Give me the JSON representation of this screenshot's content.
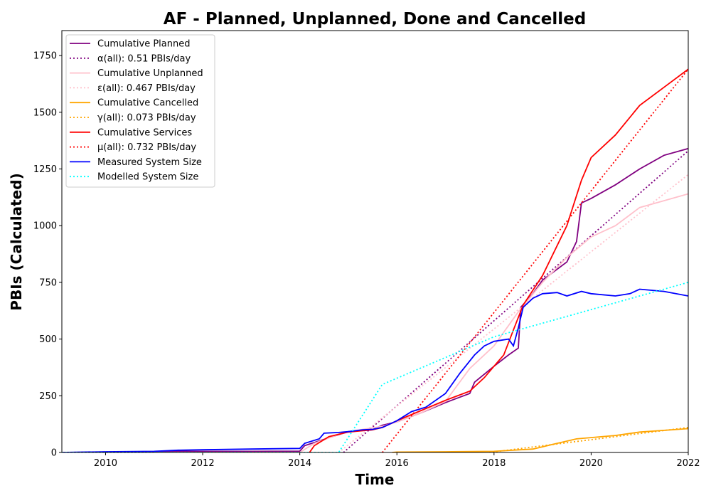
{
  "chart_data": {
    "type": "line",
    "title": "AF - Planned, Unplanned, Done  and Cancelled",
    "xlabel": "Time",
    "ylabel": "PBIs (Calculated)",
    "xlim": [
      2009.1,
      2022.0
    ],
    "ylim": [
      0,
      1860
    ],
    "x_ticks": [
      2010,
      2012,
      2014,
      2016,
      2018,
      2020,
      2022
    ],
    "x_tick_labels": [
      "2010",
      "2012",
      "2014",
      "2016",
      "2018",
      "2020",
      "2022"
    ],
    "y_ticks": [
      0,
      250,
      500,
      750,
      1000,
      1250,
      1500,
      1750
    ],
    "y_tick_labels": [
      "0",
      "250",
      "500",
      "750",
      "1000",
      "1250",
      "1500",
      "1750"
    ],
    "grid": false,
    "legend_position": "top-left",
    "series": [
      {
        "name": "Cumulative Planned",
        "color": "#800080",
        "style": "solid",
        "points": [
          [
            2009.1,
            0
          ],
          [
            2010,
            2
          ],
          [
            2011,
            3
          ],
          [
            2011.5,
            5
          ],
          [
            2013,
            5
          ],
          [
            2014,
            6
          ],
          [
            2014.1,
            30
          ],
          [
            2014.6,
            65
          ],
          [
            2015,
            92
          ],
          [
            2015.5,
            100
          ],
          [
            2015.7,
            120
          ],
          [
            2016,
            135
          ],
          [
            2016.5,
            175
          ],
          [
            2017,
            220
          ],
          [
            2017.5,
            260
          ],
          [
            2017.6,
            310
          ],
          [
            2018,
            380
          ],
          [
            2018.3,
            430
          ],
          [
            2018.5,
            460
          ],
          [
            2018.55,
            640
          ],
          [
            2018.8,
            700
          ],
          [
            2019,
            760
          ],
          [
            2019.5,
            840
          ],
          [
            2019.7,
            930
          ],
          [
            2019.8,
            1100
          ],
          [
            2020,
            1120
          ],
          [
            2020.5,
            1180
          ],
          [
            2021,
            1250
          ],
          [
            2021.5,
            1310
          ],
          [
            2022,
            1340
          ]
        ]
      },
      {
        "name": "α(all): 0.51 PBIs/day",
        "color": "#800080",
        "style": "dotted",
        "points": [
          [
            2014.9,
            0
          ],
          [
            2022,
            1330
          ]
        ]
      },
      {
        "name": "Cumulative Unplanned",
        "color": "#ffc0cb",
        "style": "solid",
        "points": [
          [
            2009.1,
            0
          ],
          [
            2014,
            0
          ],
          [
            2014.3,
            40
          ],
          [
            2014.8,
            80
          ],
          [
            2015,
            92
          ],
          [
            2015.7,
            115
          ],
          [
            2016,
            135
          ],
          [
            2016.5,
            175
          ],
          [
            2017,
            225
          ],
          [
            2017.5,
            370
          ],
          [
            2018,
            470
          ],
          [
            2018.5,
            620
          ],
          [
            2019,
            750
          ],
          [
            2019.5,
            860
          ],
          [
            2020,
            950
          ],
          [
            2020.5,
            1000
          ],
          [
            2021,
            1080
          ],
          [
            2021.5,
            1110
          ],
          [
            2022,
            1140
          ]
        ]
      },
      {
        "name": "ε(all): 0.467 PBIs/day",
        "color": "#ffc0cb",
        "style": "dotted",
        "points": [
          [
            2014.8,
            0
          ],
          [
            2022,
            1225
          ]
        ]
      },
      {
        "name": "Cumulative Cancelled",
        "color": "#ffa500",
        "style": "solid",
        "points": [
          [
            2015.9,
            0
          ],
          [
            2016,
            2
          ],
          [
            2017,
            3
          ],
          [
            2018,
            5
          ],
          [
            2018.8,
            15
          ],
          [
            2019.2,
            35
          ],
          [
            2019.7,
            60
          ],
          [
            2020.5,
            75
          ],
          [
            2021,
            90
          ],
          [
            2022,
            105
          ]
        ]
      },
      {
        "name": "γ(all): 0.073 PBIs/day",
        "color": "#ffa500",
        "style": "dotted",
        "points": [
          [
            2017.9,
            0
          ],
          [
            2022,
            110
          ]
        ]
      },
      {
        "name": "Cumulative Services",
        "color": "#ff0000",
        "style": "solid",
        "points": [
          [
            2014.2,
            0
          ],
          [
            2014.3,
            30
          ],
          [
            2014.6,
            70
          ],
          [
            2015,
            90
          ],
          [
            2015.5,
            100
          ],
          [
            2015.7,
            110
          ],
          [
            2016,
            140
          ],
          [
            2016.5,
            185
          ],
          [
            2017,
            230
          ],
          [
            2017.5,
            270
          ],
          [
            2017.8,
            330
          ],
          [
            2018,
            380
          ],
          [
            2018.2,
            430
          ],
          [
            2018.4,
            540
          ],
          [
            2018.6,
            650
          ],
          [
            2019,
            780
          ],
          [
            2019.5,
            1000
          ],
          [
            2019.8,
            1200
          ],
          [
            2020,
            1300
          ],
          [
            2020.5,
            1400
          ],
          [
            2021,
            1530
          ],
          [
            2021.5,
            1610
          ],
          [
            2022,
            1690
          ]
        ]
      },
      {
        "name": "μ(all): 0.732 PBIs/day",
        "color": "#ff0000",
        "style": "dotted",
        "points": [
          [
            2015.7,
            0
          ],
          [
            2022,
            1690
          ]
        ]
      },
      {
        "name": "Measured System Size",
        "color": "#0000ff",
        "style": "solid",
        "points": [
          [
            2009.1,
            0
          ],
          [
            2010,
            3
          ],
          [
            2011,
            5
          ],
          [
            2011.5,
            10
          ],
          [
            2012,
            12
          ],
          [
            2013,
            15
          ],
          [
            2014,
            18
          ],
          [
            2014.1,
            40
          ],
          [
            2014.4,
            60
          ],
          [
            2014.5,
            85
          ],
          [
            2014.8,
            88
          ],
          [
            2015,
            92
          ],
          [
            2015.3,
            100
          ],
          [
            2015.5,
            102
          ],
          [
            2015.7,
            110
          ],
          [
            2016,
            140
          ],
          [
            2016.3,
            180
          ],
          [
            2016.6,
            200
          ],
          [
            2017,
            260
          ],
          [
            2017.3,
            350
          ],
          [
            2017.6,
            430
          ],
          [
            2017.8,
            470
          ],
          [
            2018,
            490
          ],
          [
            2018.3,
            500
          ],
          [
            2018.4,
            470
          ],
          [
            2018.5,
            550
          ],
          [
            2018.6,
            640
          ],
          [
            2018.8,
            680
          ],
          [
            2019,
            700
          ],
          [
            2019.3,
            705
          ],
          [
            2019.5,
            690
          ],
          [
            2019.8,
            710
          ],
          [
            2020,
            700
          ],
          [
            2020.5,
            690
          ],
          [
            2020.8,
            700
          ],
          [
            2021,
            720
          ],
          [
            2021.5,
            710
          ],
          [
            2022,
            690
          ]
        ]
      },
      {
        "name": "Modelled System Size",
        "color": "#00ffff",
        "style": "dotted",
        "points": [
          [
            2009.1,
            0
          ],
          [
            2014.8,
            0
          ],
          [
            2015.7,
            300
          ],
          [
            2018,
            510
          ],
          [
            2022,
            750
          ]
        ]
      }
    ]
  }
}
